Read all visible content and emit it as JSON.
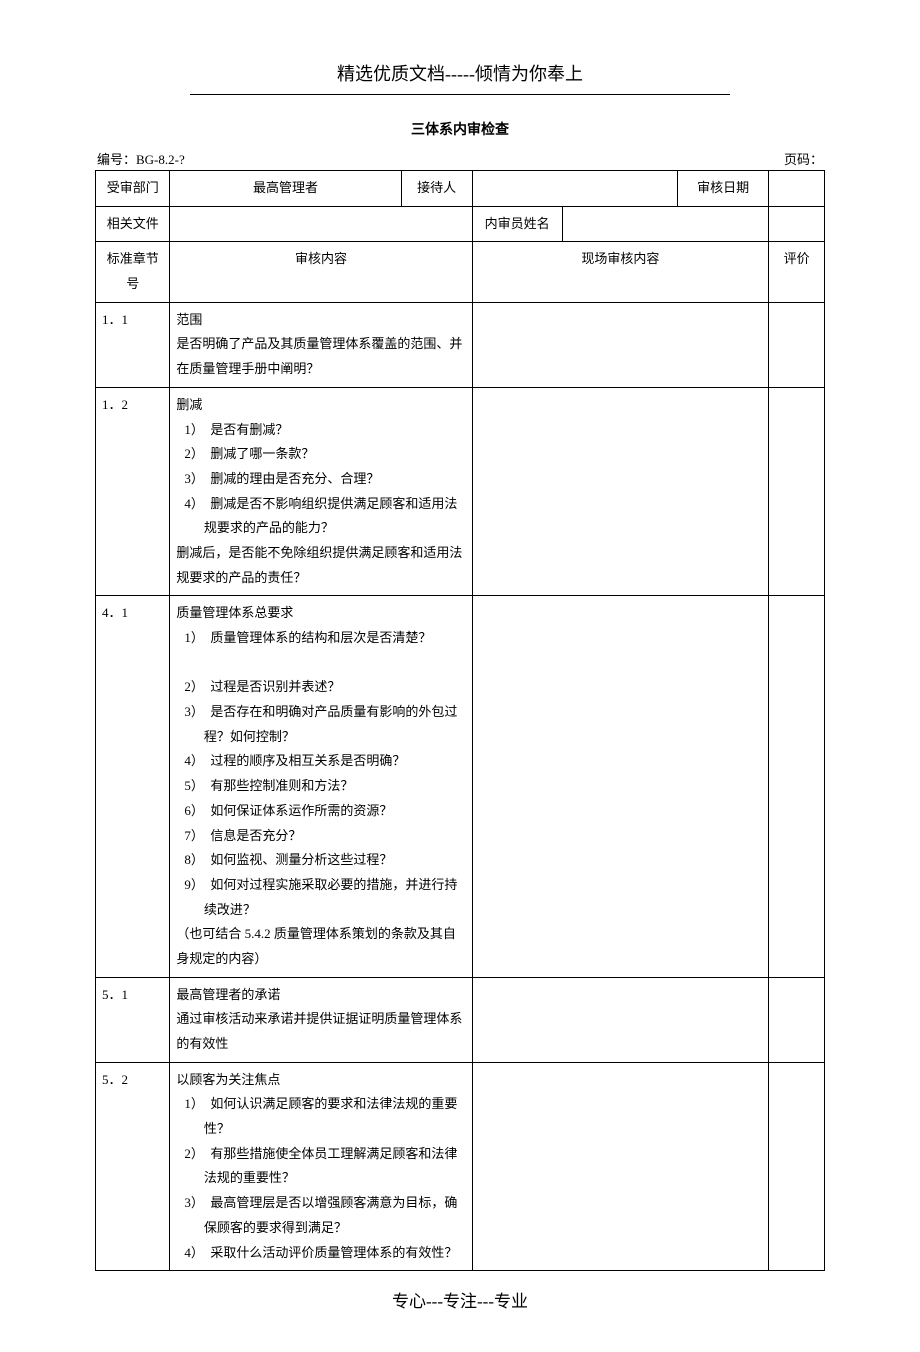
{
  "header_title": "精选优质文档-----倾情为你奉上",
  "doc_title": "三体系内审检查",
  "meta": {
    "number_label": "编号：BG-8.2-?",
    "page_label": "页码："
  },
  "info_table": {
    "row1": {
      "c1": "受审部门",
      "c2": "最高管理者",
      "c3": "接待人",
      "c4": "",
      "c5": "审核日期",
      "c6": ""
    },
    "row2": {
      "c1": "相关文件",
      "c2": "",
      "c3": "内审员姓名",
      "c4": ""
    },
    "header": {
      "c1": "标准章节号",
      "c2": "审核内容",
      "c3": "现场审核内容",
      "c4": "评价"
    }
  },
  "rows": [
    {
      "sec": "1．1",
      "title": "范围",
      "body": [
        "是否明确了产品及其质量管理体系覆盖的范围、并在质量管理手册中阐明？"
      ],
      "items": []
    },
    {
      "sec": "1．2",
      "title": "删减",
      "body": [],
      "items": [
        "是否有删减？",
        "删减了哪一条款？",
        "删减的理由是否充分、合理？",
        "删减是否不影响组织提供满足顾客和适用法规要求的产品的能力？"
      ],
      "tail": [
        "删减后，是否能不免除组织提供满足顾客和适用法规要求的产品的责任？"
      ]
    },
    {
      "sec": "4．1",
      "title": "质量管理体系总要求",
      "body": [],
      "items": [
        "质量管理体系的结构和层次是否清楚？",
        "过程是否识别并表述？",
        "是否存在和明确对产品质量有影响的外包过程？如何控制？",
        "过程的顺序及相互关系是否明确？",
        "有那些控制准则和方法？",
        "如何保证体系运作所需的资源？",
        "信息是否充分？",
        "如何监视、测量分析这些过程？",
        "如何对过程实施采取必要的措施，并进行持续改进？"
      ],
      "tail": [
        "（也可结合 5.4.2 质量管理体系策划的条款及其自身规定的内容）"
      ],
      "item1_extra_break": true
    },
    {
      "sec": "5．1",
      "title": "最高管理者的承诺",
      "body": [
        "通过审核活动来承诺并提供证据证明质量管理体系的有效性"
      ],
      "items": []
    },
    {
      "sec": "5．2",
      "title": "以顾客为关注焦点",
      "body": [],
      "items": [
        "如何认识满足顾客的要求和法律法规的重要性？",
        "有那些措施使全体员工理解满足顾客和法律法规的重要性？",
        "最高管理层是否以增强顾客满意为目标，确保顾客的要求得到满足？",
        "采取什么活动评价质量管理体系的有效性？"
      ]
    }
  ],
  "footer": "专心---专注---专业"
}
